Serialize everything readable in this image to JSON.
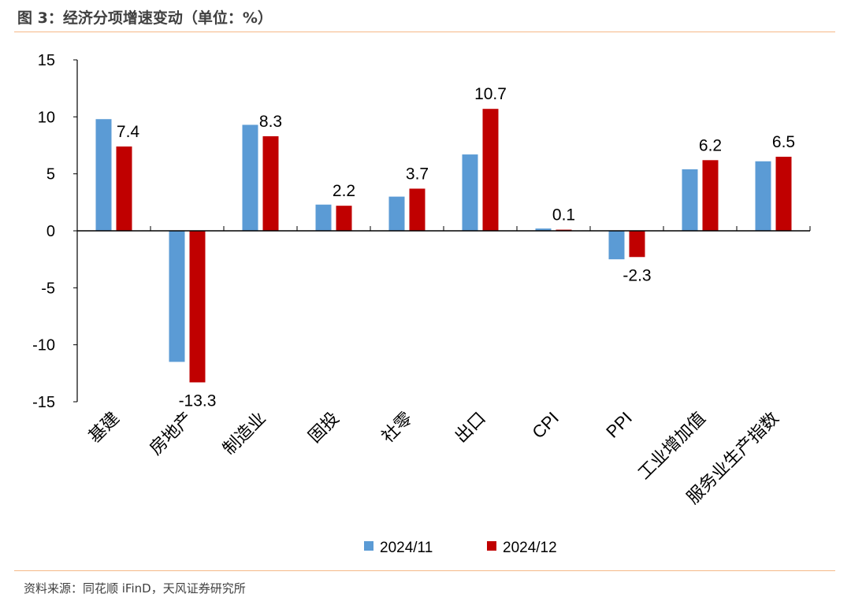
{
  "title": "图 3：经济分项增速变动（单位：%）",
  "source": "资料来源：同花顺 iFinD，天风证券研究所",
  "colors": {
    "series1": "#5B9BD5",
    "series2": "#C00000",
    "rule": "#F5B987"
  },
  "chart_data": {
    "type": "bar",
    "categories": [
      "基建",
      "房地产",
      "制造业",
      "固投",
      "社零",
      "出口",
      "CPI",
      "PPI",
      "工业增加值",
      "服务业生产指数"
    ],
    "series": [
      {
        "name": "2024/11",
        "values": [
          9.8,
          -11.5,
          9.3,
          2.3,
          3.0,
          6.7,
          0.2,
          -2.5,
          5.4,
          6.1
        ]
      },
      {
        "name": "2024/12",
        "values": [
          7.4,
          -13.3,
          8.3,
          2.2,
          3.7,
          10.7,
          0.1,
          -2.3,
          6.2,
          6.5
        ],
        "data_labels": [
          "7.4",
          "-13.3",
          "8.3",
          "2.2",
          "3.7",
          "10.7",
          "0.1",
          "-2.3",
          "6.2",
          "6.5"
        ]
      }
    ],
    "ylim": [
      -15,
      15
    ],
    "yticks": [
      "15",
      "10",
      "5",
      "0",
      "-5",
      "-10",
      "-15"
    ],
    "grid": false,
    "legend": "bottom"
  }
}
